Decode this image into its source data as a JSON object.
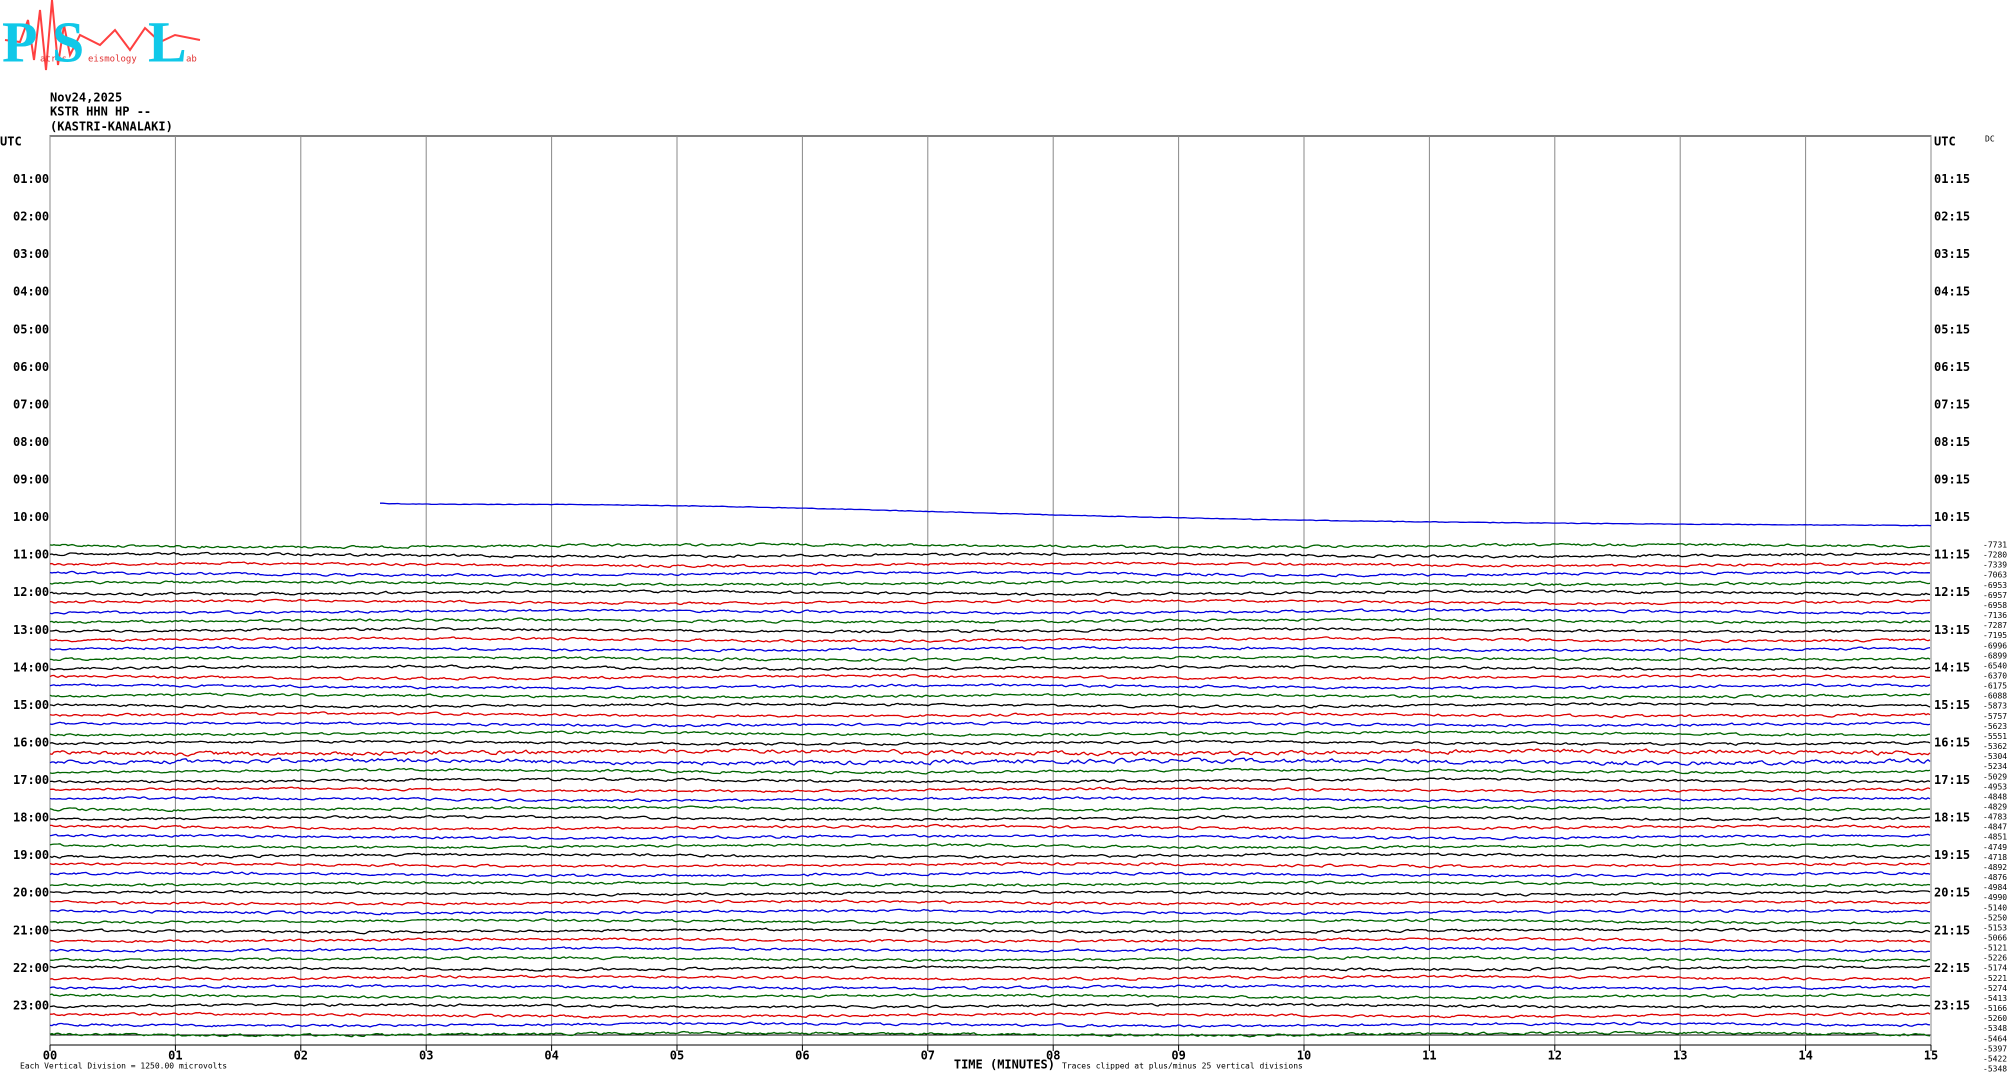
{
  "logo": {
    "letters": [
      "P",
      "S",
      "L"
    ],
    "words": [
      "atras",
      "eismology",
      "ab"
    ]
  },
  "header": {
    "date": "Nov24,2025",
    "station": "KSTR HHN HP --",
    "site": "(KASTRI-KANALAKI)"
  },
  "left_labels": [
    "UTC",
    "01:00",
    "02:00",
    "03:00",
    "04:00",
    "05:00",
    "06:00",
    "07:00",
    "08:00",
    "09:00",
    "10:00",
    "11:00",
    "12:00",
    "13:00",
    "14:00",
    "15:00",
    "16:00",
    "17:00",
    "18:00",
    "19:00",
    "20:00",
    "21:00",
    "22:00",
    "23:00"
  ],
  "right_labels": [
    "UTC",
    "01:15",
    "02:15",
    "03:15",
    "04:15",
    "05:15",
    "06:15",
    "07:15",
    "08:15",
    "09:15",
    "10:15",
    "11:15",
    "12:15",
    "13:15",
    "14:15",
    "15:15",
    "16:15",
    "17:15",
    "18:15",
    "19:15",
    "20:15",
    "21:15",
    "22:15",
    "23:15"
  ],
  "dc_label": "DC",
  "dc_values": [
    -7731,
    -7280,
    -7339,
    -7063,
    -6953,
    -6957,
    -6958,
    -7136,
    -7287,
    -7195,
    -6996,
    -6899,
    -6540,
    -6370,
    -6175,
    -6088,
    -5873,
    -5757,
    -5623,
    -5551,
    -5362,
    -5304,
    -5234,
    -5029,
    -4953,
    -4848,
    -4829,
    -4783,
    -4847,
    -4851,
    -4749,
    -4718,
    -4892,
    -4876,
    -4984,
    -4990,
    -5140,
    -5250,
    -5153,
    -5066,
    -5121,
    -5226,
    -5174,
    -5221,
    -5274,
    -5413,
    -5166,
    -5260,
    -5348,
    -5464,
    -5397,
    -5422,
    -5348
  ],
  "x_labels": [
    "00",
    "01",
    "02",
    "03",
    "04",
    "05",
    "06",
    "07",
    "08",
    "09",
    "10",
    "11",
    "12",
    "13",
    "14",
    "15"
  ],
  "footer": {
    "scale": "Each Vertical Division = 1250.00 microvolts",
    "axis_title": "TIME (MINUTES)",
    "clip": "Traces clipped at plus/minus 25 vertical divisions"
  },
  "trace_colors": [
    "#006400",
    "#000000",
    "#dd0000",
    "#0000dd"
  ]
}
